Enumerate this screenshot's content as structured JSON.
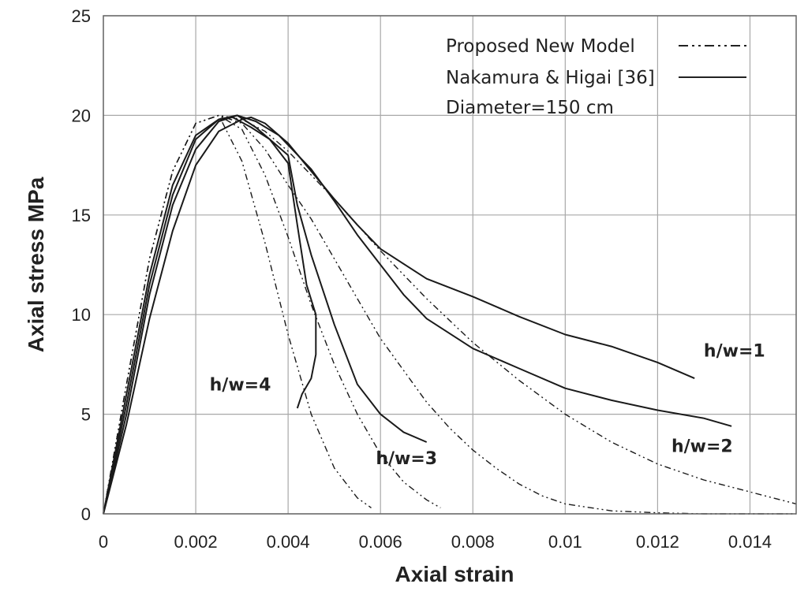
{
  "chart_data": {
    "type": "line",
    "title": "",
    "xlabel": "Axial strain",
    "ylabel": "Axial stress MPa",
    "xlim": [
      0,
      0.015
    ],
    "ylim": [
      0,
      25
    ],
    "xticks": [
      0,
      0.002,
      0.004,
      0.006,
      0.008,
      0.01,
      0.012,
      0.014
    ],
    "xtick_labels": [
      "0",
      "0.002",
      "0.004",
      "0.006",
      "0.008",
      "0.01",
      "0.012",
      "0.014"
    ],
    "yticks": [
      0,
      5,
      10,
      15,
      20,
      25
    ],
    "ytick_labels": [
      "0",
      "5",
      "10",
      "15",
      "20",
      "25"
    ],
    "grid": true,
    "legend": {
      "placement": "top-right",
      "entries": [
        {
          "label": "Proposed New Model",
          "style": "dash-dot"
        },
        {
          "label": "Nakamura & Higai [36]",
          "style": "solid"
        },
        {
          "label": "Diameter=150 cm",
          "style": "none"
        }
      ]
    },
    "annotations": [
      {
        "text": "h/w=1",
        "x": 0.013,
        "y": 7.9
      },
      {
        "text": "h/w=2",
        "x": 0.0123,
        "y": 3.1
      },
      {
        "text": "h/w=3",
        "x": 0.0059,
        "y": 2.5
      },
      {
        "text": "h/w=4",
        "x": 0.0023,
        "y": 6.2
      }
    ],
    "series": [
      {
        "model": "Proposed New Model",
        "case": "h/w=1",
        "style": "dash-dot",
        "x": [
          0,
          0.0005,
          0.001,
          0.0015,
          0.002,
          0.0025,
          0.003,
          0.0035,
          0.004,
          0.0045,
          0.005,
          0.0055,
          0.006,
          0.007,
          0.008,
          0.009,
          0.01,
          0.011,
          0.012,
          0.013,
          0.014,
          0.015
        ],
        "y": [
          0,
          6.5,
          12.8,
          17.2,
          19.6,
          20.0,
          19.8,
          19.2,
          18.2,
          17.0,
          15.8,
          14.5,
          13.2,
          10.8,
          8.6,
          6.7,
          5.0,
          3.6,
          2.5,
          1.7,
          1.1,
          0.5
        ]
      },
      {
        "model": "Proposed New Model",
        "case": "h/w=2",
        "style": "dash-dot",
        "x": [
          0,
          0.0005,
          0.001,
          0.0015,
          0.002,
          0.0025,
          0.003,
          0.0035,
          0.004,
          0.0045,
          0.005,
          0.0055,
          0.006,
          0.0065,
          0.007,
          0.0075,
          0.008,
          0.0085,
          0.009,
          0.0095,
          0.01,
          0.011,
          0.012,
          0.013,
          0.014,
          0.015
        ],
        "y": [
          0,
          6.5,
          12.8,
          17.2,
          19.6,
          20.0,
          19.6,
          18.3,
          16.5,
          14.8,
          12.8,
          10.8,
          8.8,
          7.2,
          5.6,
          4.3,
          3.2,
          2.3,
          1.5,
          0.9,
          0.5,
          0.15,
          0.05,
          0,
          0,
          0
        ]
      },
      {
        "model": "Proposed New Model",
        "case": "h/w=3",
        "style": "dash-dot",
        "x": [
          0,
          0.0005,
          0.001,
          0.0015,
          0.002,
          0.0025,
          0.003,
          0.0035,
          0.004,
          0.0045,
          0.005,
          0.0055,
          0.006,
          0.0065,
          0.007,
          0.0073
        ],
        "y": [
          0,
          6.5,
          12.8,
          17.2,
          19.6,
          20.0,
          19.3,
          17.0,
          13.9,
          10.5,
          7.5,
          5.0,
          3.0,
          1.6,
          0.7,
          0.3
        ]
      },
      {
        "model": "Proposed New Model",
        "case": "h/w=4",
        "style": "dash-dot",
        "x": [
          0,
          0.0005,
          0.001,
          0.0015,
          0.002,
          0.0025,
          0.003,
          0.0035,
          0.004,
          0.0045,
          0.005,
          0.0055,
          0.0058
        ],
        "y": [
          0,
          6.5,
          12.8,
          17.2,
          19.6,
          20.0,
          17.7,
          13.6,
          9.0,
          5.0,
          2.3,
          0.8,
          0.3
        ]
      },
      {
        "model": "Nakamura & Higai [36]",
        "case": "h/w=1",
        "style": "solid",
        "x": [
          0,
          0.0005,
          0.001,
          0.0015,
          0.002,
          0.0025,
          0.003,
          0.0032,
          0.0035,
          0.004,
          0.0045,
          0.005,
          0.0055,
          0.006,
          0.007,
          0.008,
          0.009,
          0.01,
          0.011,
          0.012,
          0.0128
        ],
        "y": [
          0,
          4.5,
          9.8,
          14.2,
          17.5,
          19.2,
          19.8,
          19.9,
          19.6,
          18.6,
          17.2,
          15.8,
          14.5,
          13.3,
          11.8,
          10.9,
          9.9,
          9.0,
          8.4,
          7.6,
          6.8
        ]
      },
      {
        "model": "Nakamura & Higai [36]",
        "case": "h/w=2",
        "style": "solid",
        "x": [
          0,
          0.0005,
          0.001,
          0.0015,
          0.002,
          0.0025,
          0.0029,
          0.0033,
          0.0038,
          0.0045,
          0.005,
          0.0055,
          0.006,
          0.0065,
          0.007,
          0.008,
          0.009,
          0.01,
          0.011,
          0.012,
          0.013,
          0.0136
        ],
        "y": [
          0,
          5.0,
          11.0,
          15.5,
          18.3,
          19.7,
          20.0,
          19.7,
          19.0,
          17.3,
          15.7,
          14.0,
          12.5,
          11.0,
          9.8,
          8.3,
          7.3,
          6.3,
          5.7,
          5.2,
          4.8,
          4.4
        ]
      },
      {
        "model": "Nakamura & Higai [36]",
        "case": "h/w=3",
        "style": "solid",
        "x": [
          0,
          0.0005,
          0.001,
          0.0015,
          0.002,
          0.0025,
          0.0029,
          0.0033,
          0.0037,
          0.004,
          0.0042,
          0.0045,
          0.005,
          0.0055,
          0.006,
          0.0065,
          0.007
        ],
        "y": [
          0,
          5.5,
          11.5,
          16.0,
          18.8,
          19.8,
          20.0,
          19.4,
          18.6,
          18.0,
          15.5,
          13.0,
          9.5,
          6.5,
          5.0,
          4.1,
          3.6
        ]
      },
      {
        "model": "Nakamura & Higai [36]",
        "case": "h/w=4",
        "style": "solid",
        "x": [
          0,
          0.0005,
          0.001,
          0.0015,
          0.002,
          0.0025,
          0.0028,
          0.0032,
          0.0036,
          0.004,
          0.0042,
          0.0044,
          0.0046,
          0.0046,
          0.0045,
          0.0043,
          0.0042
        ],
        "y": [
          0,
          6.0,
          12.0,
          16.5,
          19.0,
          19.8,
          19.9,
          19.4,
          18.8,
          17.6,
          14.5,
          11.5,
          10.0,
          8.0,
          6.8,
          6.0,
          5.3
        ]
      }
    ]
  }
}
